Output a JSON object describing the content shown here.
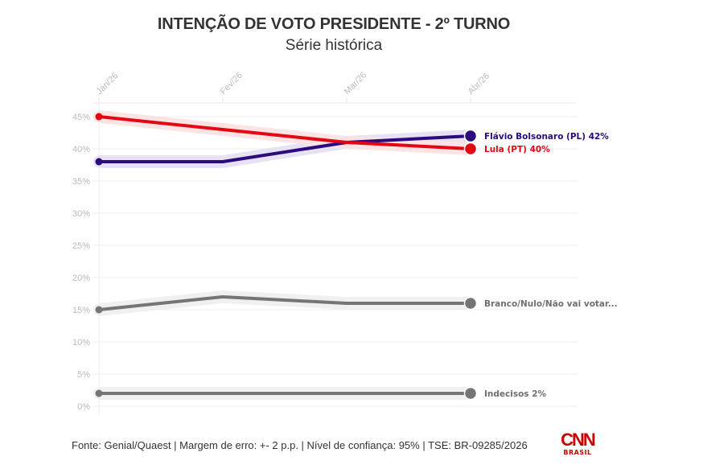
{
  "header": {
    "title": "INTENÇÃO DE VOTO PRESIDENTE - 2º TURNO",
    "subtitle": "Série histórica"
  },
  "footer": {
    "source": "Fonte: Genial/Quaest | Margem de erro: +- 2 p.p. | Nível de confiança: 95% | TSE: BR-09285/2026"
  },
  "logo": {
    "brand": "CNN",
    "sub": "BRASIL"
  },
  "chart_data": {
    "type": "line",
    "title": "INTENÇÃO DE VOTO PRESIDENTE - 2º TURNO",
    "subtitle": "Série histórica",
    "xlabel": "",
    "ylabel": "",
    "x": [
      "Jan/26",
      "Fev/26",
      "Mar/26",
      "Abr/26"
    ],
    "ylim": [
      0,
      45
    ],
    "yticks": [
      0,
      5,
      10,
      15,
      20,
      25,
      30,
      35,
      40,
      45
    ],
    "ytick_labels": [
      "0%",
      "5%",
      "10%",
      "15%",
      "20%",
      "25%",
      "30%",
      "35%",
      "40%",
      "45%"
    ],
    "grid": true,
    "error_band": 2,
    "series": [
      {
        "name": "Flávio Bolsonaro (PL)",
        "label": "Flávio Bolsonaro (PL) 42%",
        "color": "#2a0a7d",
        "band_color": "#e6e1f3",
        "values": [
          38,
          38,
          41,
          42
        ]
      },
      {
        "name": "Lula (PT)",
        "label": "Lula (PT) 40%",
        "color": "#e30613",
        "band_color": "#fbe3e4",
        "values": [
          45,
          43,
          41,
          40
        ]
      },
      {
        "name": "Branco/Nulo/Não vai votar",
        "label": "Branco/Nulo/Não vai votar...",
        "color": "#757575",
        "band_color": "#f0f0f0",
        "values": [
          15,
          17,
          16,
          16
        ]
      },
      {
        "name": "Indecisos",
        "label": "Indecisos 2%",
        "color": "#757575",
        "band_color": "#f0f0f0",
        "values": [
          2,
          2,
          2,
          2
        ]
      }
    ]
  }
}
